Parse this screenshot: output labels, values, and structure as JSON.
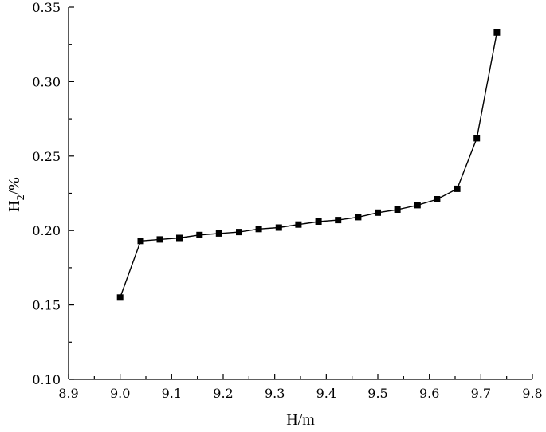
{
  "chart_data": {
    "type": "line",
    "xlabel": "H/m",
    "ylabel_main": "H",
    "ylabel_sub": "2",
    "ylabel_tail": "/%",
    "xlim": [
      8.9,
      9.8
    ],
    "ylim": [
      0.1,
      0.35
    ],
    "x_ticks": [
      "8.9",
      "9.0",
      "9.1",
      "9.2",
      "9.3",
      "9.4",
      "9.5",
      "9.6",
      "9.7",
      "9.8"
    ],
    "y_ticks": [
      "0.10",
      "0.15",
      "0.20",
      "0.25",
      "0.30",
      "0.35"
    ],
    "grid": false,
    "marker": "square",
    "series": [
      {
        "x": [
          9.0,
          9.04,
          9.077,
          9.115,
          9.154,
          9.192,
          9.231,
          9.269,
          9.308,
          9.346,
          9.385,
          9.423,
          9.462,
          9.5,
          9.538,
          9.577,
          9.615,
          9.654,
          9.692,
          9.731
        ],
        "y": [
          0.155,
          0.193,
          0.194,
          0.195,
          0.197,
          0.198,
          0.199,
          0.201,
          0.202,
          0.204,
          0.206,
          0.207,
          0.209,
          0.212,
          0.214,
          0.217,
          0.221,
          0.228,
          0.262,
          0.333
        ]
      }
    ]
  }
}
